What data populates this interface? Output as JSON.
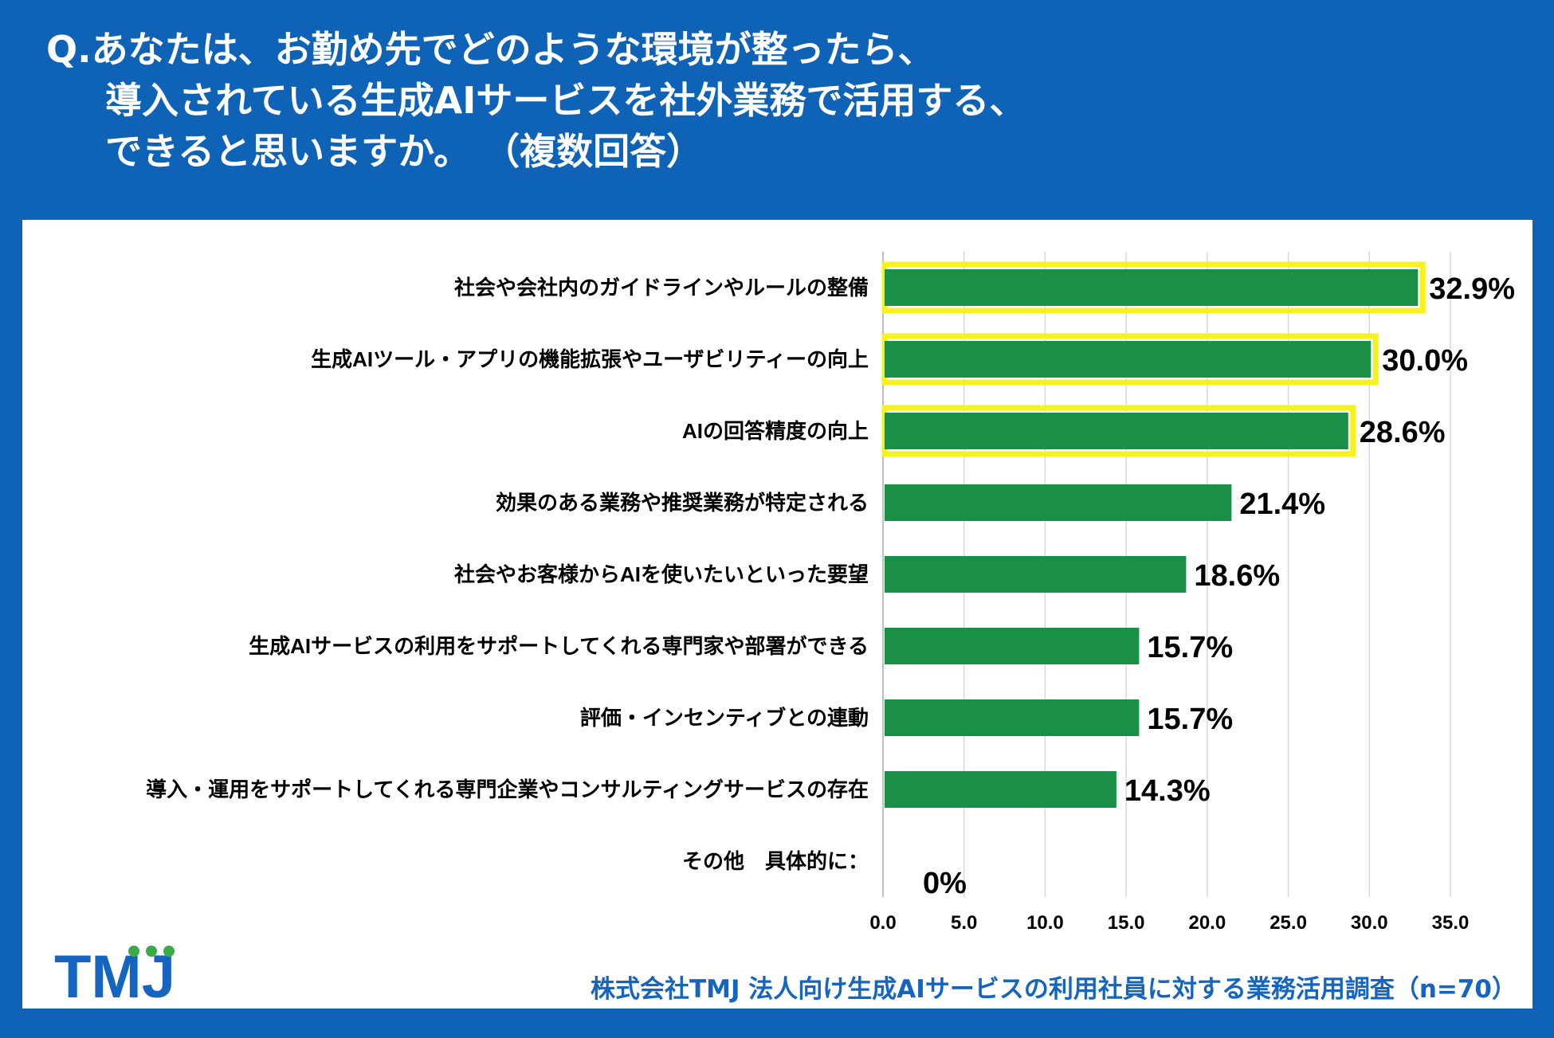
{
  "title": {
    "line1": "Q.あなたは、お勤め先でどのような環境が整ったら、",
    "line2": "導入されている生成AIサービスを社外業務で活用する、",
    "line3": "できると思いますか。 （複数回答）"
  },
  "chart_data": {
    "type": "bar",
    "orientation": "horizontal",
    "categories": [
      "社会や会社内のガイドラインやルールの整備",
      "生成AIツール・アプリの機能拡張やユーザビリティーの向上",
      "AIの回答精度の向上",
      "効果のある業務や推奨業務が特定される",
      "社会やお客様からAIを使いたいといった要望",
      "生成AIサービスの利用をサポートしてくれる専門家や部署ができる",
      "評価・インセンティブとの連動",
      "導入・運用をサポートしてくれる専門企業やコンサルティングサービスの存在",
      "その他　具体的に："
    ],
    "values": [
      32.9,
      30.0,
      28.6,
      21.4,
      18.6,
      15.7,
      15.7,
      14.3,
      0
    ],
    "value_labels": [
      "32.9%",
      "30.0%",
      "28.6%",
      "21.4%",
      "18.6%",
      "15.7%",
      "15.7%",
      "14.3%",
      "0%"
    ],
    "highlighted": [
      true,
      true,
      true,
      false,
      false,
      false,
      false,
      false,
      false
    ],
    "xlim": [
      0,
      35
    ],
    "xticks": [
      "0.0",
      "5.0",
      "10.0",
      "15.0",
      "20.0",
      "25.0",
      "30.0",
      "35.0"
    ],
    "grid": true,
    "bar_color": "#1a8f47",
    "highlight_color": "#f5f21d"
  },
  "footer": {
    "logo_text": "TMJ",
    "source": "株式会社TMJ 法人向け生成AIサービスの利用社員に対する業務活用調査（n=70）"
  },
  "colors": {
    "background": "#0f63b7",
    "panel": "#ffffff",
    "logo_blue": "#1565c0",
    "logo_green": "#3daa4a"
  }
}
